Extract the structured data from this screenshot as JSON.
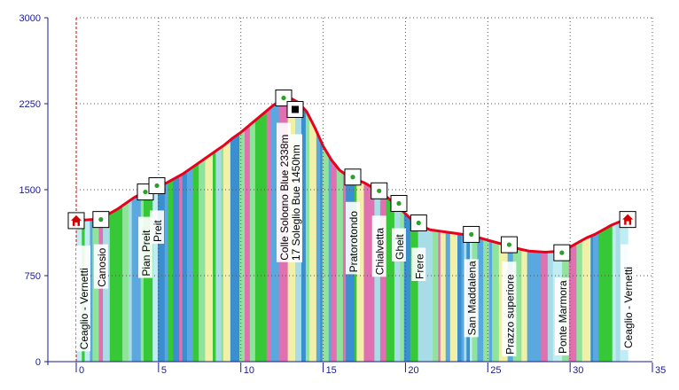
{
  "chart_data": {
    "type": "area",
    "title": "",
    "xlabel": "",
    "ylabel": "",
    "xlim": [
      0,
      35
    ],
    "ylim": [
      0,
      3000
    ],
    "x_ticks": [
      0,
      5,
      10,
      15,
      20,
      25,
      30,
      35
    ],
    "y_ticks": [
      0,
      750,
      1500,
      2250,
      3000
    ],
    "grid": true,
    "colors": {
      "profile": "#e8001c",
      "axis": "#1a1a8c",
      "grid": "#555555",
      "start_line": "#d40000",
      "bands": [
        "#a8dce6",
        "#36c836",
        "#3a8fd0",
        "#8fe39a",
        "#c0ecf4",
        "#f0f0a8",
        "#e070b0",
        "#5aa8e0"
      ]
    },
    "profile": {
      "x": [
        0,
        0.5,
        1,
        1.5,
        2,
        2.5,
        3,
        3.5,
        4,
        4.5,
        5,
        5.5,
        6,
        6.5,
        7,
        7.5,
        8,
        8.5,
        9,
        9.5,
        10,
        10.5,
        11,
        11.5,
        12,
        12.5,
        13,
        13.5,
        14,
        14.5,
        15,
        15.5,
        16,
        16.5,
        17,
        17.5,
        18,
        18.5,
        19,
        19.5,
        20,
        20.5,
        21,
        21.5,
        22,
        22.5,
        23,
        23.5,
        24,
        24.5,
        25,
        25.5,
        26,
        26.5,
        27,
        27.5,
        28,
        28.5,
        29,
        29.5,
        30,
        30.5,
        31,
        31.5,
        32,
        32.5,
        33,
        33.5
      ],
      "y": [
        1230,
        1235,
        1240,
        1260,
        1290,
        1330,
        1380,
        1430,
        1470,
        1500,
        1530,
        1560,
        1600,
        1640,
        1690,
        1740,
        1790,
        1840,
        1890,
        1950,
        2000,
        2060,
        2120,
        2180,
        2240,
        2280,
        2300,
        2260,
        2180,
        2040,
        1880,
        1760,
        1670,
        1620,
        1590,
        1560,
        1520,
        1480,
        1420,
        1360,
        1290,
        1220,
        1180,
        1150,
        1140,
        1130,
        1120,
        1110,
        1100,
        1080,
        1060,
        1040,
        1020,
        1000,
        980,
        965,
        960,
        955,
        960,
        970,
        1000,
        1040,
        1080,
        1110,
        1150,
        1190,
        1220,
        1230
      ]
    },
    "waypoints": [
      {
        "x": 0,
        "y": 1230,
        "label": "Ceaglio - Vernetti",
        "icon": "home-icon"
      },
      {
        "x": 1.5,
        "y": 1240,
        "label": "Canosio",
        "icon": "waypoint-icon"
      },
      {
        "x": 4.2,
        "y": 1480,
        "label": "Pian Preit",
        "icon": "waypoint-icon"
      },
      {
        "x": 4.9,
        "y": 1535,
        "label": "Preit",
        "icon": "waypoint-icon"
      },
      {
        "x": 12.6,
        "y": 2300,
        "label": "Colle Sologno Blue 2338m",
        "icon": "waypoint-icon"
      },
      {
        "x": 13.3,
        "y": 2200,
        "label": "17 Soleglio Bue 1450hm",
        "icon": "square-marker-icon"
      },
      {
        "x": 16.8,
        "y": 1610,
        "label": "Pratorotondo",
        "icon": "waypoint-icon"
      },
      {
        "x": 18.4,
        "y": 1490,
        "label": "Chialvetta",
        "icon": "waypoint-icon"
      },
      {
        "x": 19.6,
        "y": 1380,
        "label": "Gheit",
        "icon": "waypoint-icon"
      },
      {
        "x": 20.8,
        "y": 1210,
        "label": "Frere",
        "icon": "waypoint-icon"
      },
      {
        "x": 24.0,
        "y": 1110,
        "label": "San Maddalena",
        "icon": "waypoint-icon"
      },
      {
        "x": 26.3,
        "y": 1020,
        "label": "Prazzo superiore",
        "icon": "waypoint-icon"
      },
      {
        "x": 29.5,
        "y": 950,
        "label": "Ponte Marmora",
        "icon": "waypoint-icon"
      },
      {
        "x": 33.5,
        "y": 1240,
        "label": "Ceaglio - Vernetti",
        "icon": "home-icon"
      }
    ]
  }
}
